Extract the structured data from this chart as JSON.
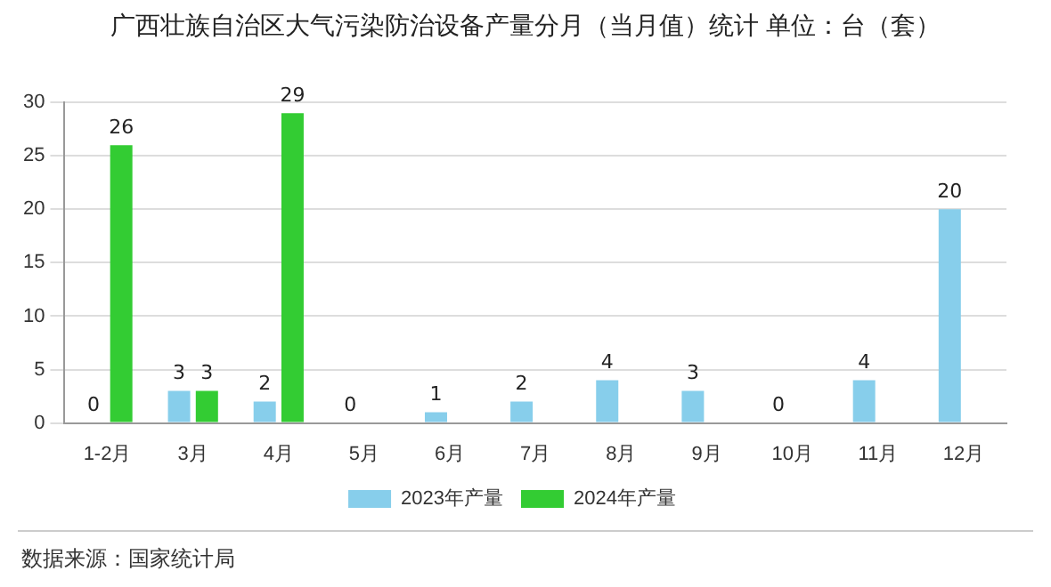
{
  "chart_data": {
    "type": "bar",
    "title": "广西壮族自治区大气污染防治设备产量分月（当月值）统计  单位：台（套）",
    "categories": [
      "1-2月",
      "3月",
      "4月",
      "5月",
      "6月",
      "7月",
      "8月",
      "9月",
      "10月",
      "11月",
      "12月"
    ],
    "series": [
      {
        "name": "2023年产量",
        "color": "#87ceeb",
        "values": [
          0,
          3,
          2,
          0,
          1,
          2,
          4,
          3,
          0,
          4,
          20
        ]
      },
      {
        "name": "2024年产量",
        "color": "#33cc33",
        "values": [
          26,
          3,
          29,
          null,
          null,
          null,
          null,
          null,
          null,
          null,
          null
        ]
      }
    ],
    "ylim": [
      0,
      30
    ],
    "yticks": [
      0,
      5,
      10,
      15,
      20,
      25,
      30
    ],
    "grid": "y",
    "legend": "bottom",
    "data_labels": true,
    "annotations": [
      "数据来源：国家统计局"
    ]
  }
}
